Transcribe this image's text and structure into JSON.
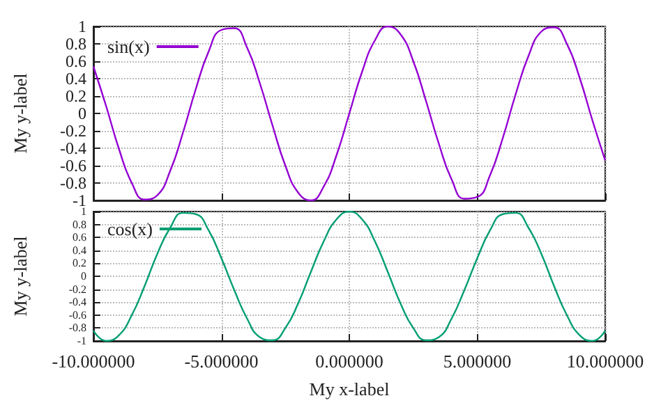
{
  "chart_data": [
    {
      "type": "line",
      "ylabel": "My y-label",
      "x": [
        -10,
        -9.5,
        -9,
        -8.5,
        -8,
        -7.5,
        -7,
        -6.5,
        -6,
        -5.5,
        -5,
        -4.5,
        -4,
        -3.5,
        -3,
        -2.5,
        -2,
        -1.5,
        -1,
        -0.5,
        0,
        0.5,
        1,
        1.5,
        2,
        2.5,
        3,
        3.5,
        4,
        4.5,
        5,
        5.5,
        6,
        6.5,
        7,
        7.5,
        8,
        8.5,
        9,
        9.5,
        10
      ],
      "series": [
        {
          "name": "sin(x)",
          "color": "#9400d3",
          "values": [
            0.54,
            0.08,
            -0.41,
            -0.8,
            -0.99,
            -0.94,
            -0.66,
            -0.22,
            0.28,
            0.71,
            0.96,
            0.98,
            0.76,
            0.35,
            -0.14,
            -0.6,
            -0.91,
            -1.0,
            -0.84,
            -0.48,
            0,
            0.48,
            0.84,
            1.0,
            0.91,
            0.6,
            0.14,
            -0.35,
            -0.76,
            -0.98,
            -0.96,
            -0.71,
            -0.28,
            0.22,
            0.66,
            0.94,
            0.99,
            0.8,
            0.41,
            -0.08,
            -0.54
          ]
        }
      ],
      "xlim": [
        -10,
        10
      ],
      "xticks": [
        {
          "value": -10,
          "label": null
        },
        {
          "value": -5,
          "label": null
        },
        {
          "value": 0,
          "label": null
        },
        {
          "value": 5,
          "label": null
        },
        {
          "value": 10,
          "label": null
        }
      ],
      "ylim": [
        -1,
        1
      ],
      "yticks": [
        -1,
        -0.8,
        -0.6,
        -0.4,
        -0.2,
        0,
        0.2,
        0.4,
        0.6,
        0.8,
        1
      ],
      "tick_labels": "y",
      "grid": true,
      "legend": "top left",
      "marker": "none",
      "line_style": "solid"
    },
    {
      "type": "line",
      "xlabel": "My x-label",
      "ylabel": "My y-label",
      "x": [
        -10,
        -9.5,
        -9,
        -8.5,
        -8,
        -7.5,
        -7,
        -6.5,
        -6,
        -5.5,
        -5,
        -4.5,
        -4,
        -3.5,
        -3,
        -2.5,
        -2,
        -1.5,
        -1,
        -0.5,
        0,
        0.5,
        1,
        1.5,
        2,
        2.5,
        3,
        3.5,
        4,
        4.5,
        5,
        5.5,
        6,
        6.5,
        7,
        7.5,
        8,
        8.5,
        9,
        9.5,
        10
      ],
      "series": [
        {
          "name": "cos(x)",
          "color": "#009e73",
          "values": [
            -0.84,
            -1.0,
            -0.91,
            -0.6,
            -0.15,
            0.35,
            0.75,
            0.98,
            0.96,
            0.71,
            0.28,
            -0.21,
            -0.65,
            -0.94,
            -0.99,
            -0.8,
            -0.42,
            0.07,
            0.54,
            0.88,
            1,
            0.88,
            0.54,
            0.07,
            -0.42,
            -0.8,
            -0.99,
            -0.94,
            -0.65,
            -0.21,
            0.28,
            0.71,
            0.96,
            0.98,
            0.75,
            0.35,
            -0.15,
            -0.6,
            -0.91,
            -1.0,
            -0.84
          ]
        }
      ],
      "xlim": [
        -10,
        10
      ],
      "xticks": [
        {
          "value": -10,
          "label": "-10.000000"
        },
        {
          "value": -5,
          "label": "-5.000000"
        },
        {
          "value": 0,
          "label": "0.000000"
        },
        {
          "value": 5,
          "label": "5.000000"
        },
        {
          "value": 10,
          "label": "10.000000"
        }
      ],
      "ylim": [
        -1,
        1
      ],
      "yticks": [
        -1,
        -0.8,
        -0.6,
        -0.4,
        -0.2,
        0,
        0.2,
        0.4,
        0.6,
        0.8,
        1
      ],
      "grid": true,
      "legend": "top left",
      "marker": "none",
      "line_style": "solid"
    }
  ]
}
